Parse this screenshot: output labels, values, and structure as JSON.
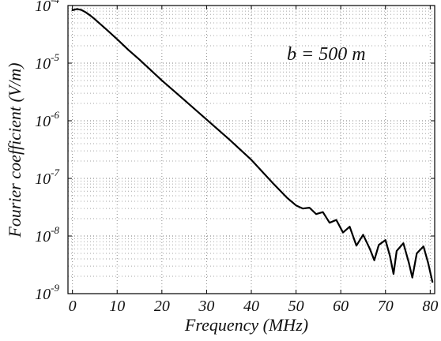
{
  "chart_data": {
    "type": "line",
    "title": "",
    "xlabel": "Frequency   (MHz)",
    "ylabel": "Fourier coefficient   (V/m)",
    "annotation": "b  = 500 m",
    "xlim": [
      -1,
      81
    ],
    "ylim": [
      1e-09,
      0.0001
    ],
    "yscale": "log",
    "grid": true,
    "x_ticks": [
      0,
      10,
      20,
      30,
      40,
      50,
      60,
      70,
      80
    ],
    "x_tick_labels": [
      "0",
      "10",
      "20",
      "30",
      "40",
      "50",
      "60",
      "70",
      "80"
    ],
    "y_ticks": [
      1e-09,
      1e-08,
      1e-07,
      1e-06,
      1e-05,
      0.0001
    ],
    "y_tick_labels": [
      {
        "base": "10",
        "exp": "-9"
      },
      {
        "base": "10",
        "exp": "-8"
      },
      {
        "base": "10",
        "exp": "-7"
      },
      {
        "base": "10",
        "exp": "-6"
      },
      {
        "base": "10",
        "exp": "-5"
      },
      {
        "base": "10",
        "exp": "-4"
      }
    ],
    "series": [
      {
        "color": "#000000",
        "points": [
          [
            0.0,
            8.3e-05
          ],
          [
            1.0,
            8.7e-05
          ],
          [
            2.0,
            8.4e-05
          ],
          [
            3.0,
            7.6e-05
          ],
          [
            4.0,
            6.7e-05
          ],
          [
            5.0,
            5.8e-05
          ],
          [
            7.5,
            3.9e-05
          ],
          [
            10.0,
            2.6e-05
          ],
          [
            12.5,
            1.7e-05
          ],
          [
            15.0,
            1.15e-05
          ],
          [
            20.0,
            5e-06
          ],
          [
            25.0,
            2.3e-06
          ],
          [
            30.0,
            1.05e-06
          ],
          [
            35.0,
            4.8e-07
          ],
          [
            40.0,
            2.1e-07
          ],
          [
            45.0,
            8e-08
          ],
          [
            48.0,
            4.6e-08
          ],
          [
            50.0,
            3.4e-08
          ],
          [
            51.5,
            3e-08
          ],
          [
            53.0,
            3.1e-08
          ],
          [
            54.5,
            2.4e-08
          ],
          [
            56.0,
            2.6e-08
          ],
          [
            57.5,
            1.7e-08
          ],
          [
            59.0,
            1.9e-08
          ],
          [
            60.5,
            1.15e-08
          ],
          [
            62.0,
            1.45e-08
          ],
          [
            63.5,
            6.8e-09
          ],
          [
            65.0,
            1.05e-08
          ],
          [
            66.5,
            6e-09
          ],
          [
            67.5,
            3.8e-09
          ],
          [
            68.5,
            7e-09
          ],
          [
            70.0,
            8.5e-09
          ],
          [
            71.0,
            4.5e-09
          ],
          [
            71.8,
            2.2e-09
          ],
          [
            72.5,
            5.5e-09
          ],
          [
            74.0,
            7.5e-09
          ],
          [
            75.2,
            3.5e-09
          ],
          [
            76.0,
            1.9e-09
          ],
          [
            77.0,
            5e-09
          ],
          [
            78.5,
            6.6e-09
          ],
          [
            79.5,
            3.5e-09
          ],
          [
            80.5,
            1.6e-09
          ]
        ]
      }
    ]
  }
}
